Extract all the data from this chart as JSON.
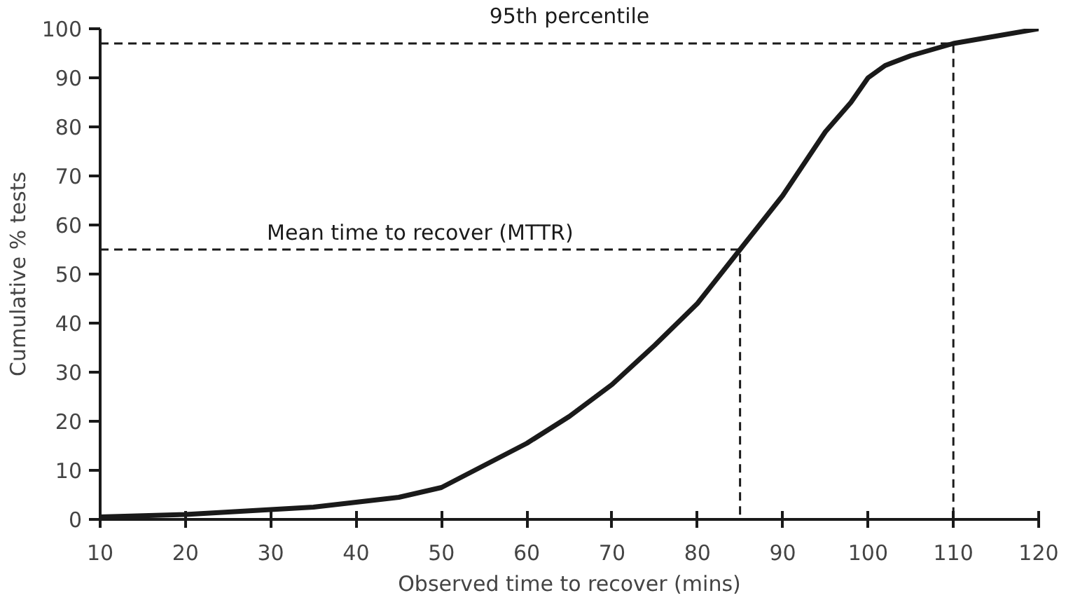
{
  "chart_data": {
    "type": "line",
    "xlabel": "Observed time to recover (mins)",
    "ylabel": "Cumulative % tests",
    "xlim": [
      10,
      120
    ],
    "ylim": [
      0,
      100
    ],
    "xticks": [
      10,
      20,
      30,
      40,
      50,
      60,
      70,
      80,
      90,
      100,
      110,
      120
    ],
    "yticks": [
      0,
      10,
      20,
      30,
      40,
      50,
      60,
      70,
      80,
      90,
      100
    ],
    "grid": false,
    "marker": "none",
    "series": [
      {
        "color": "#1a1a1a",
        "line_style": "solid",
        "x": [
          10,
          20,
          30,
          35,
          40,
          45,
          50,
          55,
          60,
          65,
          70,
          75,
          80,
          85,
          90,
          95,
          98,
          100,
          102,
          105,
          110,
          115,
          120
        ],
        "values": [
          0.5,
          1,
          2,
          2.5,
          3.5,
          4.5,
          6.5,
          11,
          15.5,
          21,
          27.5,
          35.5,
          44,
          55,
          66,
          79,
          85,
          90,
          92.5,
          94.5,
          97,
          98.5,
          100
        ]
      },
      {
        "color": "#1a1a1a",
        "line_style": "dashed",
        "x": [
          10,
          85,
          85
        ],
        "values": [
          55,
          55,
          0
        ]
      },
      {
        "color": "#1a1a1a",
        "line_style": "dashed",
        "x": [
          10,
          110,
          110
        ],
        "values": [
          97,
          97,
          0
        ]
      }
    ],
    "annotations": [
      "Mean time to recover (MTTR)",
      "95th percentile"
    ]
  }
}
